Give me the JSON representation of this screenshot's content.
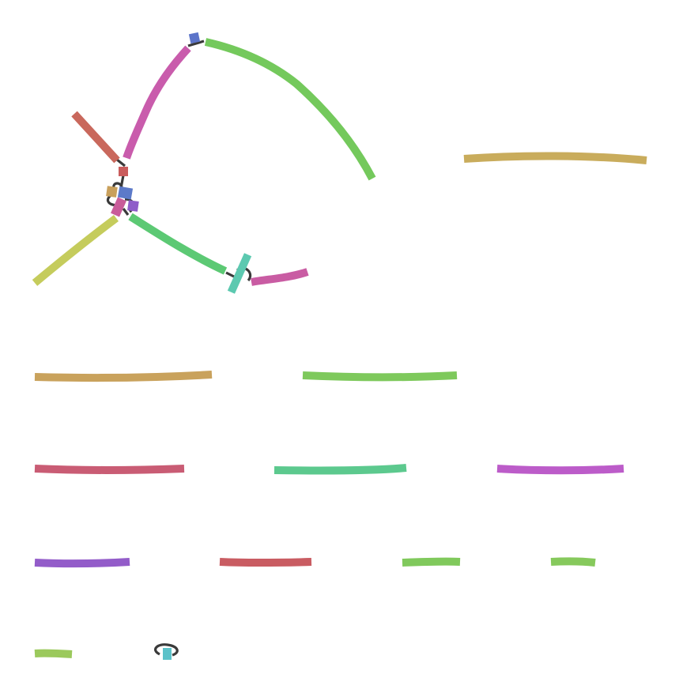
{
  "diagram": {
    "edge_color": "#3a3a3a",
    "segments": [
      {
        "name": "segment-green-long-arc",
        "color": "#74c95c"
      },
      {
        "name": "segment-pink-upper",
        "color": "#c95cac"
      },
      {
        "name": "segment-red-diagonal",
        "color": "#c9685c"
      },
      {
        "name": "segment-olive-diagonal",
        "color": "#c5cc5c"
      },
      {
        "name": "segment-green-mid",
        "color": "#5cc974"
      },
      {
        "name": "segment-pink-short",
        "color": "#c95ca3"
      },
      {
        "name": "segment-gold-isolated-1",
        "color": "#c9ac5c"
      },
      {
        "name": "segment-gold-isolated-2",
        "color": "#c9a25c"
      },
      {
        "name": "segment-green-isolated-1",
        "color": "#7ec95c"
      },
      {
        "name": "segment-red-isolated-1",
        "color": "#c95c74"
      },
      {
        "name": "segment-teal-isolated",
        "color": "#5cc98e"
      },
      {
        "name": "segment-magenta-isolated",
        "color": "#bc5cc9"
      },
      {
        "name": "segment-purple-isolated",
        "color": "#935cc9"
      },
      {
        "name": "segment-red-isolated-2",
        "color": "#c95c62"
      },
      {
        "name": "segment-green-isolated-2",
        "color": "#80c95c"
      },
      {
        "name": "segment-green-isolated-3",
        "color": "#86c95c"
      },
      {
        "name": "segment-lime-isolated",
        "color": "#9bc95c"
      }
    ],
    "nodes": [
      {
        "name": "node-blue-top",
        "color": "#5c74c9"
      },
      {
        "name": "node-red-small",
        "color": "#c95c5c"
      },
      {
        "name": "node-tan",
        "color": "#c9a05c"
      },
      {
        "name": "node-blue-center",
        "color": "#5c7ac9"
      },
      {
        "name": "node-pink-center",
        "color": "#c95c9a"
      },
      {
        "name": "node-purple-center",
        "color": "#8f5cc9"
      },
      {
        "name": "node-teal-cross",
        "color": "#5cc9b0"
      },
      {
        "name": "node-cyan-loop",
        "color": "#5cc2c9"
      }
    ]
  }
}
